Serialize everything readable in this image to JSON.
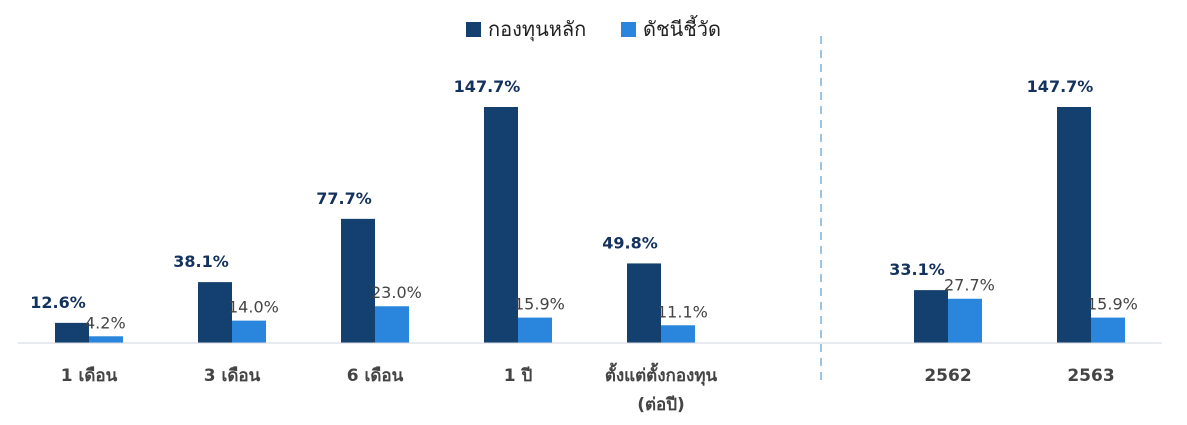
{
  "chart_data": {
    "type": "bar",
    "legend": "top-center",
    "grid": false,
    "series": [
      {
        "name": "กองทุนหลัก",
        "color": "#14406f",
        "values": [
          12.6,
          38.1,
          77.7,
          147.7,
          49.8,
          33.1,
          147.7
        ],
        "labels": [
          "12.6%",
          "38.1%",
          "77.7%",
          "147.7%",
          "49.8%",
          "33.1%",
          "147.7%"
        ]
      },
      {
        "name": "ดัชนีชี้วัด",
        "color": "#2a86dc",
        "values": [
          4.2,
          14.0,
          23.0,
          15.9,
          11.1,
          27.7,
          15.9
        ],
        "labels": [
          "4.2%",
          "14.0%",
          "23.0%",
          "15.9%",
          "11.1%",
          "27.7%",
          "15.9%"
        ]
      }
    ],
    "categories": [
      [
        "1 เดือน"
      ],
      [
        "3 เดือน"
      ],
      [
        "6 เดือน"
      ],
      [
        "1 ปี"
      ],
      [
        "ตั้งแต่ตั้งกองทุน",
        "(ต่อปี)"
      ],
      [
        "2562"
      ],
      [
        "2563"
      ]
    ],
    "ylim": [
      0,
      160
    ]
  }
}
